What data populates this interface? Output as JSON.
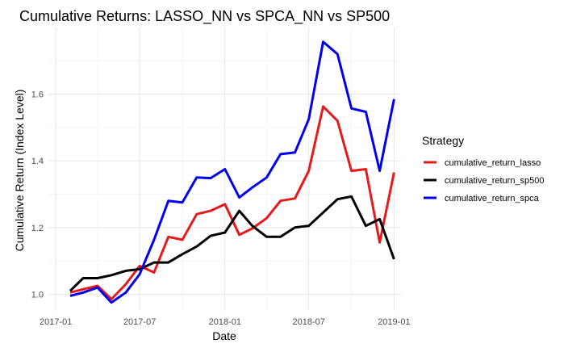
{
  "chart_data": {
    "type": "line",
    "title": "Cumulative Returns: LASSO_NN vs SPCA_NN vs SP500",
    "xlabel": "Date",
    "ylabel": "Cumulative Return (Index Level)",
    "x": [
      "2017-02",
      "2017-03",
      "2017-04",
      "2017-05",
      "2017-06",
      "2017-07",
      "2017-08",
      "2017-09",
      "2017-10",
      "2017-11",
      "2017-12",
      "2018-01",
      "2018-02",
      "2018-03",
      "2018-04",
      "2018-05",
      "2018-06",
      "2018-07",
      "2018-08",
      "2018-09",
      "2018-10",
      "2018-11",
      "2018-12",
      "2019-01"
    ],
    "x_ticks": [
      "2017-01",
      "2017-07",
      "2018-01",
      "2018-07",
      "2019-01"
    ],
    "y_ticks": [
      1.0,
      1.2,
      1.4,
      1.6
    ],
    "y_tick_labels": [
      "1.0",
      "1.2",
      "1.4",
      "1.6"
    ],
    "xlim": [
      "2016-12-16",
      "2019-01-16"
    ],
    "ylim": [
      0.95,
      1.8
    ],
    "grid": true,
    "legend": {
      "title": "Strategy",
      "position": "right"
    },
    "series": [
      {
        "name": "cumulative_return_lasso",
        "color": "#e41a1c",
        "values": [
          1.005,
          1.015,
          1.025,
          0.985,
          1.03,
          1.085,
          1.065,
          1.172,
          1.163,
          1.24,
          1.25,
          1.27,
          1.178,
          1.197,
          1.228,
          1.28,
          1.287,
          1.37,
          1.563,
          1.52,
          1.37,
          1.375,
          1.155,
          1.365
        ]
      },
      {
        "name": "cumulative_return_sp500",
        "color": "#000000",
        "values": [
          1.01,
          1.048,
          1.048,
          1.057,
          1.07,
          1.075,
          1.095,
          1.095,
          1.12,
          1.143,
          1.175,
          1.185,
          1.25,
          1.205,
          1.172,
          1.172,
          1.2,
          1.205,
          1.245,
          1.285,
          1.293,
          1.205,
          1.225,
          1.105
        ]
      },
      {
        "name": "cumulative_return_spca",
        "color": "#0000ee",
        "values": [
          0.995,
          1.005,
          1.02,
          0.975,
          1.005,
          1.06,
          1.163,
          1.28,
          1.275,
          1.35,
          1.348,
          1.375,
          1.29,
          1.32,
          1.35,
          1.42,
          1.425,
          1.525,
          1.757,
          1.72,
          1.557,
          1.547,
          1.37,
          1.585
        ]
      }
    ]
  }
}
